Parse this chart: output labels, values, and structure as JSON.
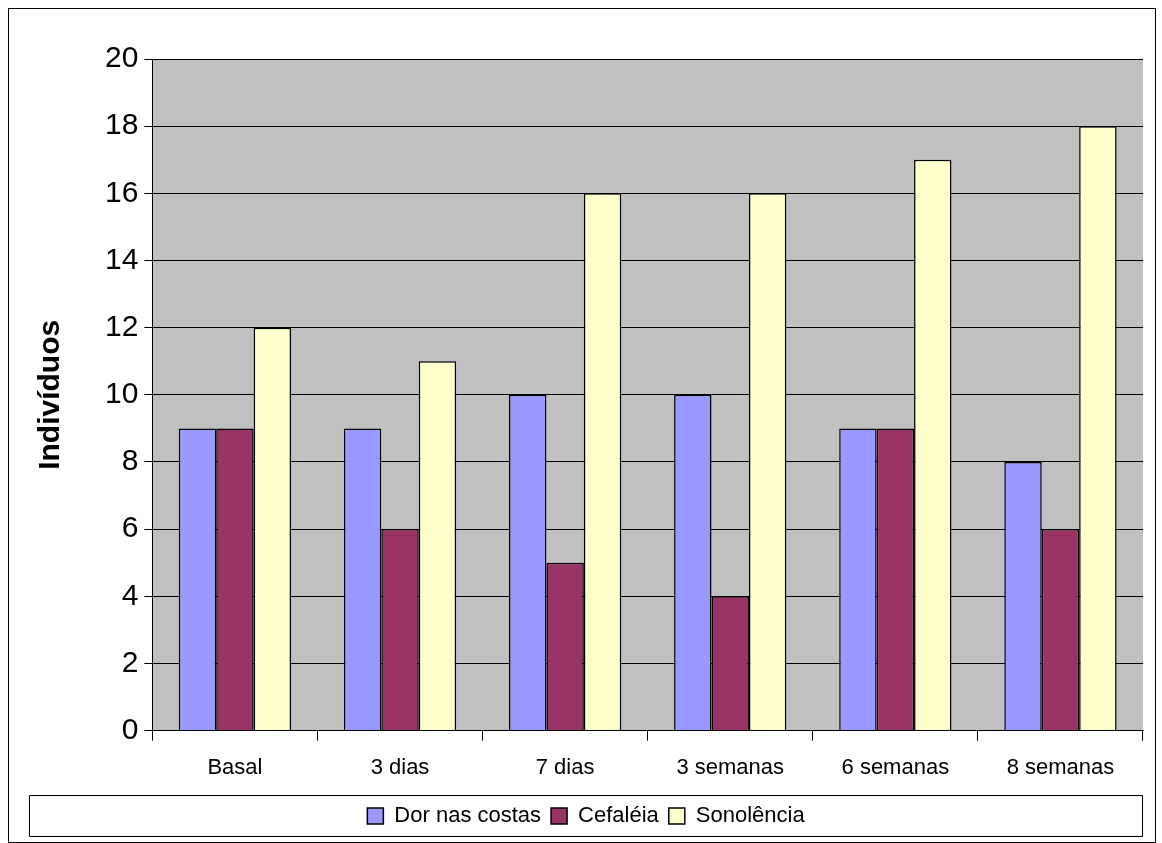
{
  "chart_data": {
    "type": "bar",
    "ylabel": "Indivíduos",
    "categories": [
      "Basal",
      "3 dias",
      "7 dias",
      "3 semanas",
      "6 semanas",
      "8 semanas"
    ],
    "series": [
      {
        "name": "Dor nas costas",
        "color": "#9999ff",
        "values": [
          9,
          9,
          10,
          10,
          9,
          8
        ]
      },
      {
        "name": "Cefaléia",
        "color": "#993366",
        "values": [
          9,
          6,
          5,
          4,
          9,
          6
        ]
      },
      {
        "name": "Sonolência",
        "color": "#ffffcc",
        "values": [
          12,
          11,
          16,
          16,
          17,
          18
        ]
      }
    ],
    "ylim": [
      0,
      20
    ],
    "yticks": [
      0,
      2,
      4,
      6,
      8,
      10,
      12,
      14,
      16,
      18,
      20
    ],
    "grid": "y",
    "legend": "bottom"
  }
}
